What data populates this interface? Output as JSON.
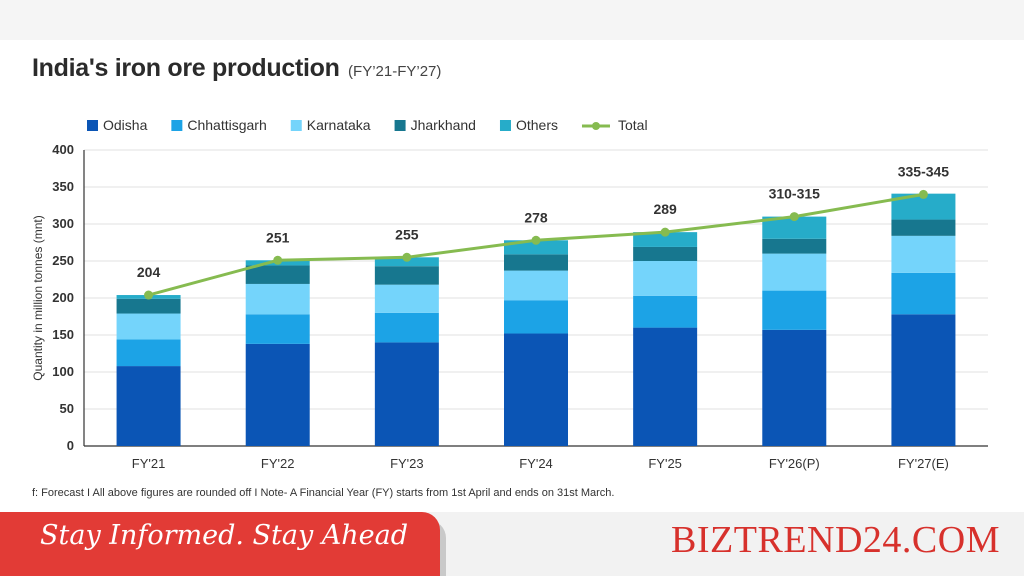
{
  "title": "India's iron ore production",
  "subtitle": "(FY’21-FY’27)",
  "note": "f: Forecast  I  All above figures are rounded off  I  Note- A Financial Year (FY) starts from 1st April and ends on 31st March.",
  "footer": {
    "tagline": "Stay Informed. Stay Ahead",
    "brand": "BIZTREND24.COM"
  },
  "chart_data": {
    "type": "bar",
    "stacked": true,
    "title": "India's iron ore production",
    "ylabel": "Quantity in million tonnes (mnt)",
    "xlabel": "",
    "ylim": [
      0,
      400
    ],
    "yticks": [
      0,
      50,
      100,
      150,
      200,
      250,
      300,
      350,
      400
    ],
    "grid": true,
    "legend_position": "top-left",
    "categories": [
      "FY'21",
      "FY'22",
      "FY'23",
      "FY'24",
      "FY'25",
      "FY'26(P)",
      "FY'27(E)"
    ],
    "series": [
      {
        "name": "Odisha",
        "color": "#0b55b5",
        "values": [
          108,
          138,
          140,
          152,
          160,
          157,
          178
        ]
      },
      {
        "name": "Chhattisgarh",
        "color": "#1ca3e6",
        "values": [
          36,
          40,
          40,
          45,
          43,
          53,
          56
        ]
      },
      {
        "name": "Karnataka",
        "color": "#74d4fb",
        "values": [
          35,
          41,
          38,
          40,
          47,
          50,
          50
        ]
      },
      {
        "name": "Jharkhand",
        "color": "#17778f",
        "values": [
          20,
          25,
          25,
          22,
          19,
          20,
          22
        ]
      },
      {
        "name": "Others",
        "color": "#26acc9",
        "values": [
          5,
          7,
          12,
          19,
          20,
          30,
          35
        ]
      }
    ],
    "total": {
      "name": "Total",
      "color": "#86bb50",
      "values": [
        204,
        251,
        255,
        278,
        289,
        310,
        340
      ],
      "labels": [
        "204",
        "251",
        "255",
        "278",
        "289",
        "310-315",
        "335-345"
      ]
    }
  }
}
